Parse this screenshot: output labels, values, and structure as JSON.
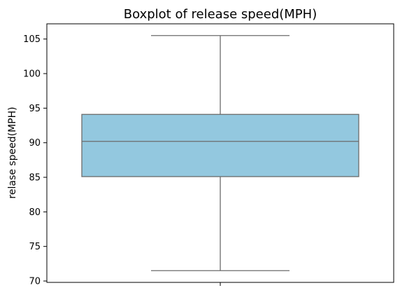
{
  "chart_data": {
    "type": "box",
    "title": "Boxplot of release speed(MPH)",
    "xlabel": "",
    "ylabel": "relase speed(MPH)",
    "ylim": [
      69.8,
      107.2
    ],
    "yticks": [
      70,
      75,
      80,
      85,
      90,
      95,
      100,
      105
    ],
    "grid": false,
    "box": {
      "whisker_low": 71.5,
      "q1": 85.1,
      "median": 90.2,
      "q3": 94.1,
      "whisker_high": 105.5
    },
    "colors": {
      "box_fill": "#93c8df",
      "box_line": "#6b6b6b"
    }
  }
}
